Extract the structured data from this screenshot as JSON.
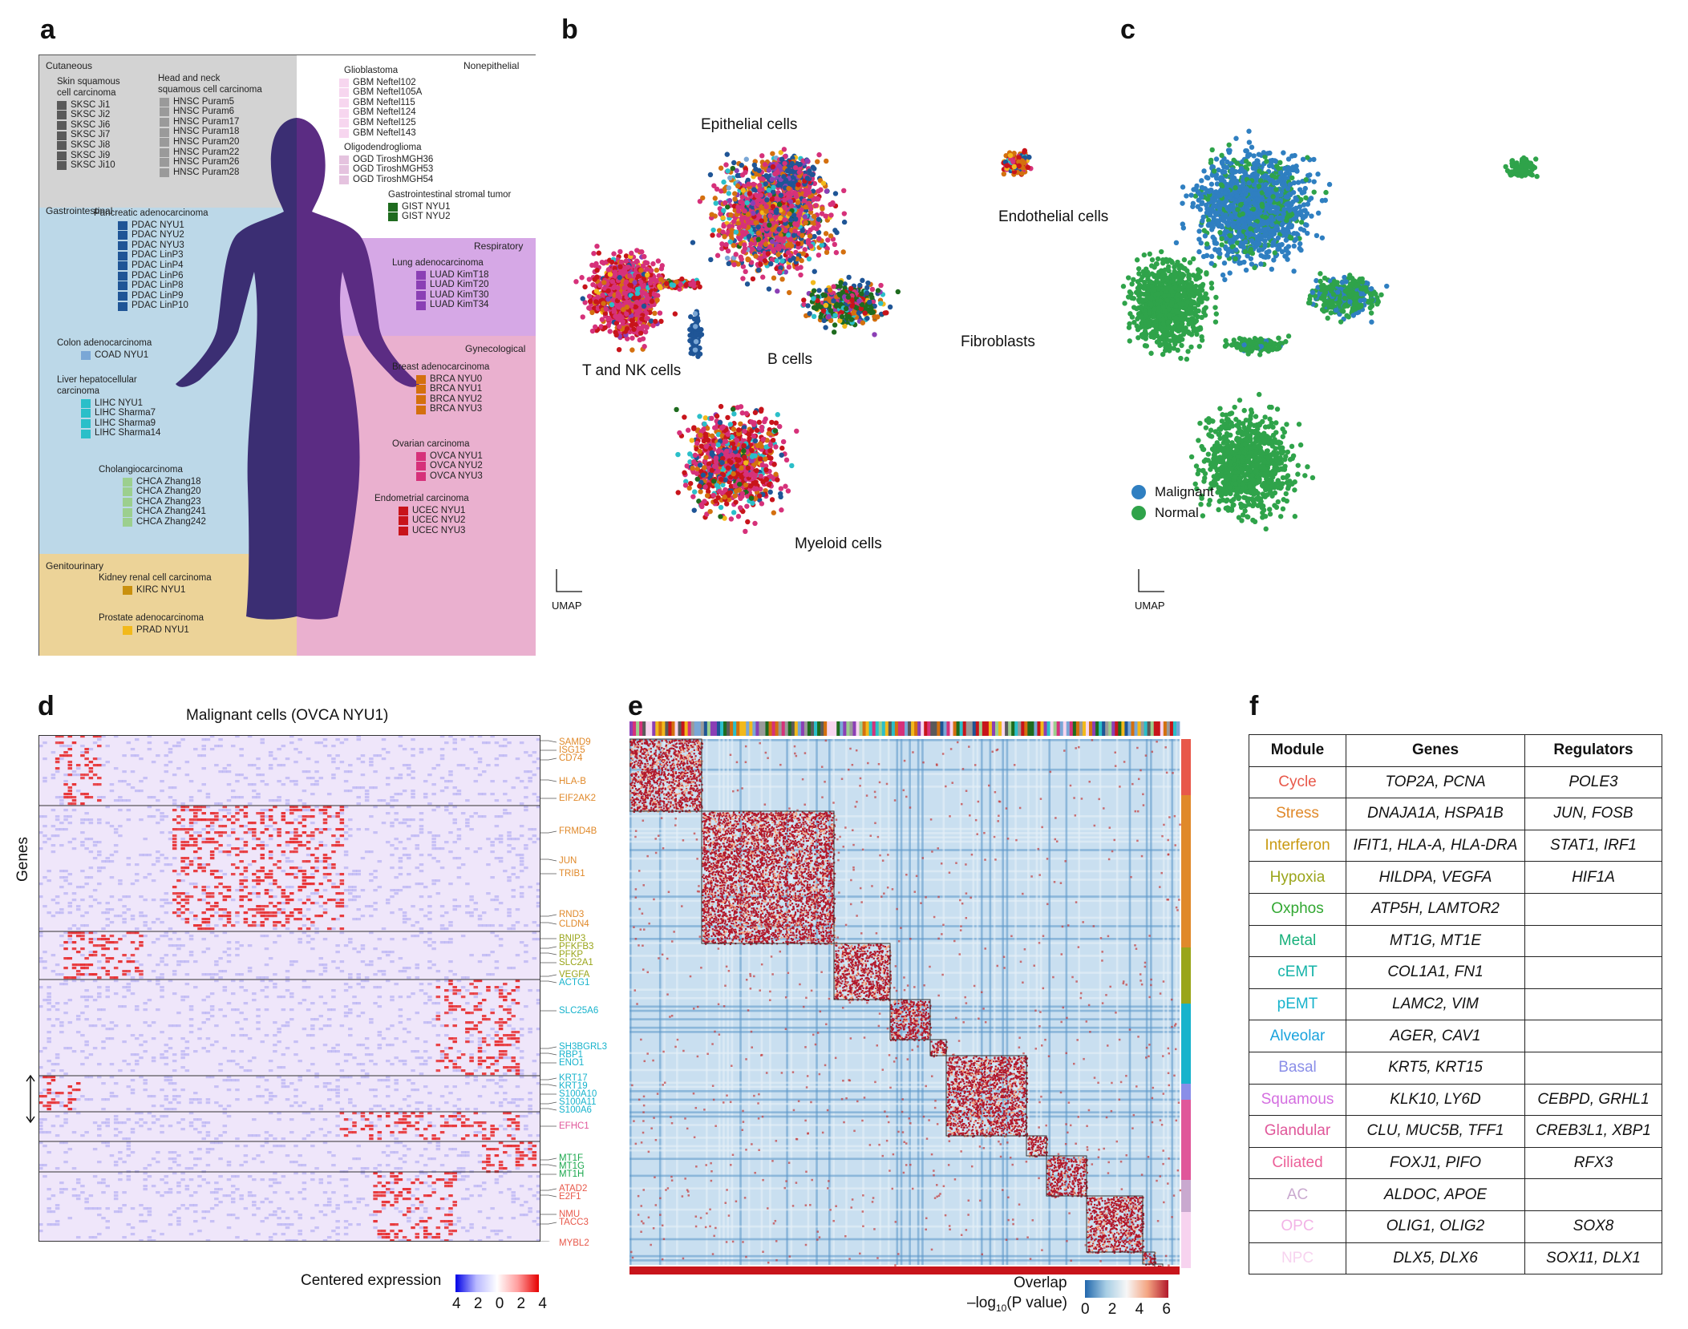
{
  "panel_labels": {
    "a": "a",
    "b": "b",
    "c": "c",
    "d": "d",
    "e": "e",
    "f": "f"
  },
  "panel_a": {
    "regions": {
      "cutaneous": "Cutaneous",
      "nonepithelial": "Nonepithelial",
      "gastrointestinal": "Gastrointestinal",
      "respiratory": "Respiratory",
      "gynecological": "Gynecological",
      "genitourinary": "Genitourinary"
    },
    "groups": [
      {
        "title": "Skin squamous\ncell carcinoma",
        "color": "#5a5a5a",
        "items": [
          "SKSC Ji1",
          "SKSC Ji2",
          "SKSC Ji6",
          "SKSC Ji7",
          "SKSC Ji8",
          "SKSC Ji9",
          "SKSC Ji10"
        ]
      },
      {
        "title": "Head and neck\nsquamous cell carcinoma",
        "color": "#9a9a9a",
        "items": [
          "HNSC Puram5",
          "HNSC Puram6",
          "HNSC Puram17",
          "HNSC Puram18",
          "HNSC Puram20",
          "HNSC Puram22",
          "HNSC Puram26",
          "HNSC Puram28"
        ]
      },
      {
        "title": "Glioblastoma",
        "color": "#f7d6ef",
        "items": [
          "GBM Neftel102",
          "GBM Neftel105A",
          "GBM Neftel115",
          "GBM Neftel124",
          "GBM Neftel125",
          "GBM Neftel143"
        ]
      },
      {
        "title": "Oligodendroglioma",
        "color": "#e5c3df",
        "items": [
          "OGD TiroshMGH36",
          "OGD TiroshMGH53",
          "OGD TiroshMGH54"
        ]
      },
      {
        "title": "Gastrointestinal stromal tumor",
        "color": "#1e6b1e",
        "items": [
          "GIST NYU1",
          "GIST NYU2"
        ]
      },
      {
        "title": "Pancreatic adenocarcinoma",
        "color": "#1f5596",
        "items": [
          "PDAC NYU1",
          "PDAC NYU2",
          "PDAC NYU3",
          "PDAC LinP3",
          "PDAC LinP4",
          "PDAC LinP6",
          "PDAC LinP8",
          "PDAC LinP9",
          "PDAC LinP10"
        ]
      },
      {
        "title": "Lung adenocarcinoma",
        "color": "#8b3fb5",
        "items": [
          "LUAD KimT18",
          "LUAD KimT20",
          "LUAD KimT30",
          "LUAD KimT34"
        ]
      },
      {
        "title": "Colon adenocarcinoma",
        "color": "#7aa7d6",
        "items": [
          "COAD NYU1"
        ]
      },
      {
        "title": "Breast adenocarcinoma",
        "color": "#d4700f",
        "items": [
          "BRCA NYU0",
          "BRCA NYU1",
          "BRCA NYU2",
          "BRCA NYU3"
        ]
      },
      {
        "title": "Liver hepatocellular\ncarcinoma",
        "color": "#2bbfc9",
        "items": [
          "LIHC NYU1",
          "LIHC Sharma7",
          "LIHC Sharma9",
          "LIHC Sharma14"
        ]
      },
      {
        "title": "Ovarian carcinoma",
        "color": "#d6317a",
        "items": [
          "OVCA NYU1",
          "OVCA NYU2",
          "OVCA NYU3"
        ]
      },
      {
        "title": "Cholangiocarcinoma",
        "color": "#9ccf8e",
        "items": [
          "CHCA Zhang18",
          "CHCA Zhang20",
          "CHCA Zhang23",
          "CHCA Zhang241",
          "CHCA Zhang242"
        ]
      },
      {
        "title": "Endometrial carcinoma",
        "color": "#c8141b",
        "items": [
          "UCEC NYU1",
          "UCEC NYU2",
          "UCEC NYU3"
        ]
      },
      {
        "title": "Kidney renal cell carcinoma",
        "color": "#c9900e",
        "items": [
          "KIRC NYU1"
        ]
      },
      {
        "title": "Prostate adenocarcinoma",
        "color": "#f2b91b",
        "items": [
          "PRAD NYU1"
        ]
      }
    ],
    "colors": {
      "cutaneous": "#d3d3d3",
      "gastro": "#bcd8e8",
      "resp": "#d6a8e6",
      "gyn": "#eab0cf",
      "genito": "#ecd398",
      "nonepi": "#ffffff",
      "body": "#5b2c83"
    }
  },
  "panel_b": {
    "clusters": [
      "Epithelial cells",
      "Endothelial cells",
      "T and NK cells",
      "B cells",
      "Fibroblasts",
      "Myeloid cells"
    ],
    "axis": "UMAP"
  },
  "panel_c": {
    "legend": [
      {
        "label": "Malignant",
        "color": "#2f7fc1"
      },
      {
        "label": "Normal",
        "color": "#2fa34a"
      }
    ],
    "axis": "UMAP"
  },
  "panel_d": {
    "title": "Malignant cells (OVCA NYU1)",
    "ylabel": "Genes",
    "colorbar_title": "Centered expression",
    "colorbar_ticks": [
      "4",
      "2",
      "0",
      "2",
      "4"
    ],
    "genes": [
      {
        "name": "SAMD9",
        "color": "#e0892a"
      },
      {
        "name": "ISG15",
        "color": "#e0892a"
      },
      {
        "name": "CD74",
        "color": "#e0892a"
      },
      {
        "name": "HLA-B",
        "color": "#e0892a"
      },
      {
        "name": "EIF2AK2",
        "color": "#e0892a"
      },
      {
        "name": "FRMD4B",
        "color": "#e0892a"
      },
      {
        "name": "JUN",
        "color": "#e0892a"
      },
      {
        "name": "TRIB1",
        "color": "#e0892a"
      },
      {
        "name": "RND3",
        "color": "#e0892a"
      },
      {
        "name": "CLDN4",
        "color": "#e0892a"
      },
      {
        "name": "BNIP3",
        "color": "#9aa51a"
      },
      {
        "name": "PFKFB3",
        "color": "#9aa51a"
      },
      {
        "name": "PFKP",
        "color": "#9aa51a"
      },
      {
        "name": "SLC2A1",
        "color": "#9aa51a"
      },
      {
        "name": "VEGFA",
        "color": "#9aa51a"
      },
      {
        "name": "ACTG1",
        "color": "#17b3cc"
      },
      {
        "name": "SLC25A6",
        "color": "#17b3cc"
      },
      {
        "name": "SH3BGRL3",
        "color": "#17b3cc"
      },
      {
        "name": "RBP1",
        "color": "#17b3cc"
      },
      {
        "name": "ENO1",
        "color": "#17b3cc"
      },
      {
        "name": "KRT17",
        "color": "#17b3cc"
      },
      {
        "name": "KRT19",
        "color": "#17b3cc"
      },
      {
        "name": "S100A10",
        "color": "#17b3cc"
      },
      {
        "name": "S100A11",
        "color": "#17b3cc"
      },
      {
        "name": "S100A6",
        "color": "#17b3cc"
      },
      {
        "name": "EFHC1",
        "color": "#e0579a"
      },
      {
        "name": "MT1F",
        "color": "#1aa84d"
      },
      {
        "name": "MT1G",
        "color": "#1aa84d"
      },
      {
        "name": "MT1H",
        "color": "#1aa84d"
      },
      {
        "name": "ATAD2",
        "color": "#e8584a"
      },
      {
        "name": "E2F1",
        "color": "#e8584a"
      },
      {
        "name": "NMU",
        "color": "#e8584a"
      },
      {
        "name": "TACC3",
        "color": "#e8584a"
      },
      {
        "name": "MYBL2",
        "color": "#e8584a"
      }
    ]
  },
  "panel_e": {
    "colorbar_title": "Overlap",
    "colorbar_subtitle": "–log",
    "colorbar_sub": "10",
    "colorbar_tail": "(P value)",
    "colorbar_ticks": [
      "0",
      "2",
      "4",
      "6"
    ]
  },
  "panel_f": {
    "headers": [
      "Module",
      "Genes",
      "Regulators"
    ],
    "rows": [
      {
        "module": "Cycle",
        "color": "#e8584a",
        "genes": "TOP2A, PCNA",
        "regs": "POLE3"
      },
      {
        "module": "Stress",
        "color": "#e0892a",
        "genes": "DNAJA1A, HSPA1B",
        "regs": "JUN, FOSB"
      },
      {
        "module": "Interferon",
        "color": "#c99a12",
        "genes": "IFIT1, HLA-A, HLA-DRA",
        "regs": "STAT1, IRF1"
      },
      {
        "module": "Hypoxia",
        "color": "#9aa51a",
        "genes": "HILDPA, VEGFA",
        "regs": "HIF1A"
      },
      {
        "module": "Oxphos",
        "color": "#32a832",
        "genes": "ATP5H, LAMTOR2",
        "regs": ""
      },
      {
        "module": "Metal",
        "color": "#16b07a",
        "genes": "MT1G, MT1E",
        "regs": ""
      },
      {
        "module": "cEMT",
        "color": "#15b3a8",
        "genes": "COL1A1, FN1",
        "regs": ""
      },
      {
        "module": "pEMT",
        "color": "#17b3cc",
        "genes": "LAMC2, VIM",
        "regs": ""
      },
      {
        "module": "Alveolar",
        "color": "#1aa3dd",
        "genes": "AGER, CAV1",
        "regs": ""
      },
      {
        "module": "Basal",
        "color": "#8a8ee8",
        "genes": "KRT5, KRT15",
        "regs": ""
      },
      {
        "module": "Squamous",
        "color": "#d46ee0",
        "genes": "KLK10, LY6D",
        "regs": "CEBPD, GRHL1"
      },
      {
        "module": "Glandular",
        "color": "#e0579a",
        "genes": "CLU, MUC5B, TFF1",
        "regs": "CREB3L1, XBP1"
      },
      {
        "module": "Ciliated",
        "color": "#ec5f98",
        "genes": "FOXJ1, PIFO",
        "regs": "RFX3"
      },
      {
        "module": "AC",
        "color": "#c9a9cf",
        "genes": "ALDOC, APOE",
        "regs": ""
      },
      {
        "module": "OPC",
        "color": "#f2b3e6",
        "genes": "OLIG1, OLIG2",
        "regs": "SOX8"
      },
      {
        "module": "NPC",
        "color": "#f7d3ef",
        "genes": "DLX5, DLX6",
        "regs": "SOX11, DLX1"
      }
    ]
  }
}
